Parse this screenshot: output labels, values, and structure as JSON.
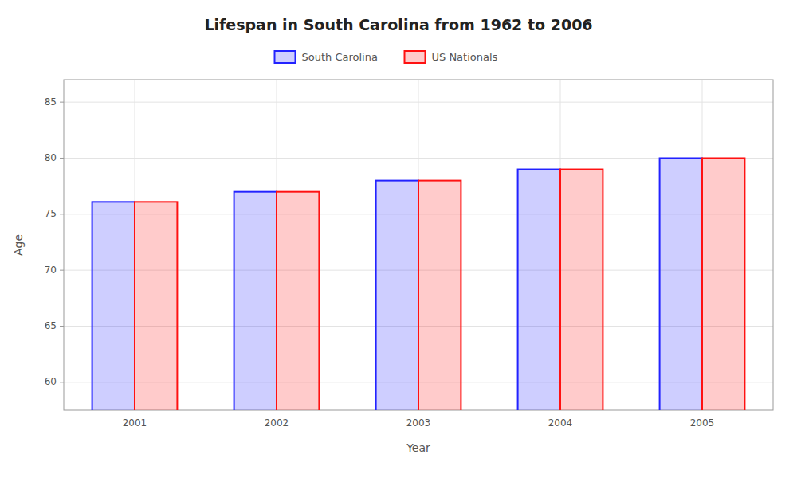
{
  "chart_data": {
    "type": "bar",
    "title": "Lifespan in South Carolina from 1962 to 2006",
    "x_label": "Year",
    "y_label": "Age",
    "categories": [
      "2001",
      "2002",
      "2003",
      "2004",
      "2005"
    ],
    "series": [
      {
        "name": "South Carolina",
        "color": "#2222ff",
        "values": [
          76.1,
          77.0,
          78.0,
          79.0,
          80.0
        ]
      },
      {
        "name": "US Nationals",
        "color": "#ff1111",
        "values": [
          76.1,
          77.0,
          78.0,
          79.0,
          80.0
        ]
      }
    ],
    "ylim": [
      57.5,
      87
    ],
    "yticks": [
      60,
      65,
      70,
      75,
      80,
      85
    ],
    "grid": true,
    "legend": "top"
  }
}
